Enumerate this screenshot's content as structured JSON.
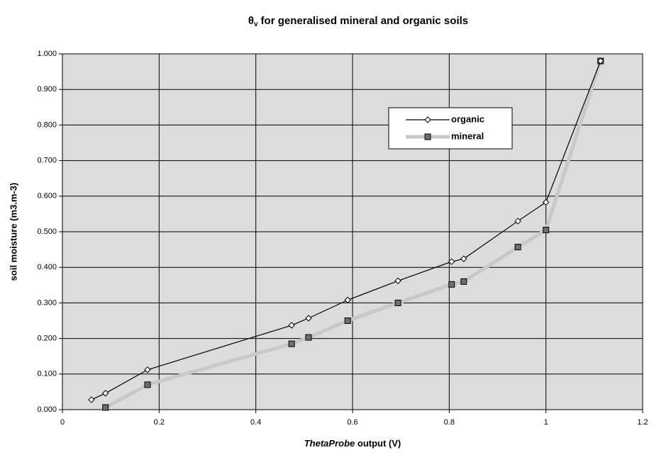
{
  "chart_data": {
    "type": "line",
    "title_symbol": "θ",
    "title_subscript": "v",
    "title": "for generalised mineral and organic soils",
    "xlabel_italic": "ThetaProbe",
    "xlabel": "output (V)",
    "ylabel": "soil moisture (m3.m-3)",
    "xlim": [
      0,
      1.2
    ],
    "xticks": [
      0,
      0.2,
      0.4,
      0.6,
      0.8,
      1,
      1.2
    ],
    "ylim": [
      0,
      1
    ],
    "yticks": [
      {
        "value": 0,
        "label": "0.000"
      },
      {
        "value": 0.1,
        "label": "0.100"
      },
      {
        "value": 0.2,
        "label": "0.200"
      },
      {
        "value": 0.3,
        "label": "0.300"
      },
      {
        "value": 0.4,
        "label": "0.400"
      },
      {
        "value": 0.5,
        "label": "0.500"
      },
      {
        "value": 0.6,
        "label": "0.600"
      },
      {
        "value": 0.7,
        "label": "0.700"
      },
      {
        "value": 0.8,
        "label": "0.800"
      },
      {
        "value": 0.9,
        "label": "0.900"
      },
      {
        "value": 1,
        "label": "1.000"
      }
    ],
    "grid": true,
    "series": [
      {
        "name": "organic",
        "color": "#000000",
        "marker": "diamond",
        "x": [
          0.06,
          0.089,
          0.176,
          0.474,
          0.509,
          0.59,
          0.694,
          0.805,
          0.83,
          0.942,
          1.0,
          1.113
        ],
        "values": [
          0.028,
          0.046,
          0.112,
          0.237,
          0.257,
          0.308,
          0.362,
          0.416,
          0.424,
          0.53,
          0.583,
          0.98
        ]
      },
      {
        "name": "mineral",
        "color": "#c8c8c8",
        "marker": "square",
        "x": [
          0.089,
          0.176,
          0.474,
          0.509,
          0.59,
          0.694,
          0.805,
          0.83,
          0.942,
          1.0,
          1.113
        ],
        "values": [
          0.006,
          0.07,
          0.185,
          0.203,
          0.25,
          0.3,
          0.352,
          0.36,
          0.457,
          0.505,
          0.98
        ]
      }
    ]
  }
}
